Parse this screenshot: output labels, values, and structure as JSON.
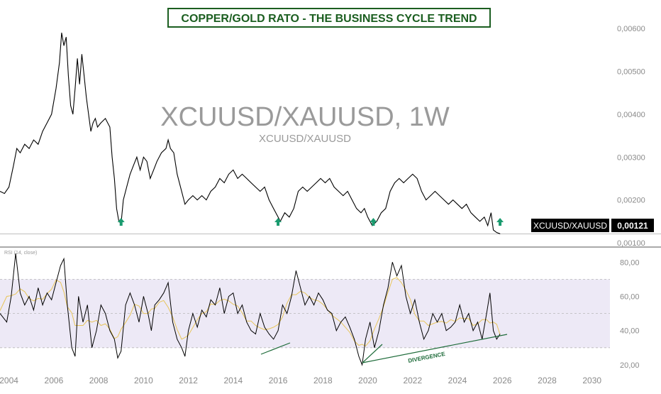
{
  "chart_data": {
    "type": "line",
    "title": "COPPER/GOLD RATO - THE BUSINESS CYCLE TREND",
    "watermark": "XCUUSD/XAUUSD, 1W",
    "watermark_sub": "XCUUSD/XAUUSD",
    "price_label": {
      "symbol": "XCUUSD/XAUUSD",
      "value": "0,00121"
    },
    "colors": {
      "title_box": "#1b5e20",
      "arrow": "#1a9b6f",
      "trendline": "#1e6b3a",
      "rsi_band": "#ede9f6",
      "price_label_bg": "#000000",
      "line": "#000000",
      "rsi_ma": "#e8c55a"
    },
    "x_ticks": [
      "2004",
      "2006",
      "2008",
      "2010",
      "2012",
      "2014",
      "2016",
      "2018",
      "2020",
      "2022",
      "2024",
      "2026",
      "2028",
      "2030"
    ],
    "xlim": [
      2003.6,
      2030.8
    ],
    "price_panel": {
      "ylim": [
        0.00095,
        0.0065
      ],
      "y_ticks": [
        "0,00100",
        "0,00200",
        "0,00300",
        "0,00400",
        "0,00500",
        "0,00600"
      ],
      "series": [
        {
          "points": [
            [
              2003.6,
              0.0022
            ],
            [
              2003.8,
              0.00215
            ],
            [
              2004.0,
              0.0023
            ],
            [
              2004.2,
              0.0028
            ],
            [
              2004.35,
              0.0032
            ],
            [
              2004.5,
              0.0031
            ],
            [
              2004.7,
              0.0033
            ],
            [
              2004.9,
              0.0032
            ],
            [
              2005.1,
              0.0034
            ],
            [
              2005.3,
              0.0033
            ],
            [
              2005.5,
              0.0036
            ],
            [
              2005.7,
              0.0038
            ],
            [
              2005.9,
              0.004
            ],
            [
              2006.1,
              0.0046
            ],
            [
              2006.25,
              0.0052
            ],
            [
              2006.35,
              0.0059
            ],
            [
              2006.45,
              0.0056
            ],
            [
              2006.55,
              0.0058
            ],
            [
              2006.65,
              0.0049
            ],
            [
              2006.75,
              0.0042
            ],
            [
              2006.85,
              0.004
            ],
            [
              2006.95,
              0.0046
            ],
            [
              2007.05,
              0.0053
            ],
            [
              2007.15,
              0.0047
            ],
            [
              2007.25,
              0.0054
            ],
            [
              2007.35,
              0.0049
            ],
            [
              2007.45,
              0.0044
            ],
            [
              2007.55,
              0.004
            ],
            [
              2007.65,
              0.0036
            ],
            [
              2007.75,
              0.0038
            ],
            [
              2007.85,
              0.0039
            ],
            [
              2007.95,
              0.0037
            ],
            [
              2008.1,
              0.0038
            ],
            [
              2008.3,
              0.0039
            ],
            [
              2008.5,
              0.0037
            ],
            [
              2008.6,
              0.003
            ],
            [
              2008.7,
              0.0025
            ],
            [
              2008.8,
              0.0018
            ],
            [
              2008.9,
              0.0015
            ],
            [
              2009.0,
              0.00145
            ],
            [
              2009.1,
              0.002
            ],
            [
              2009.25,
              0.0023
            ],
            [
              2009.4,
              0.0026
            ],
            [
              2009.55,
              0.0028
            ],
            [
              2009.7,
              0.003
            ],
            [
              2009.85,
              0.0027
            ],
            [
              2010.0,
              0.003
            ],
            [
              2010.15,
              0.0029
            ],
            [
              2010.3,
              0.0025
            ],
            [
              2010.45,
              0.0027
            ],
            [
              2010.6,
              0.0029
            ],
            [
              2010.8,
              0.0031
            ],
            [
              2011.0,
              0.0032
            ],
            [
              2011.1,
              0.0034
            ],
            [
              2011.2,
              0.0032
            ],
            [
              2011.35,
              0.0031
            ],
            [
              2011.5,
              0.0026
            ],
            [
              2011.7,
              0.0022
            ],
            [
              2011.85,
              0.0019
            ],
            [
              2012.0,
              0.002
            ],
            [
              2012.2,
              0.0021
            ],
            [
              2012.4,
              0.002
            ],
            [
              2012.6,
              0.0021
            ],
            [
              2012.8,
              0.002
            ],
            [
              2013.0,
              0.0022
            ],
            [
              2013.2,
              0.0023
            ],
            [
              2013.4,
              0.0025
            ],
            [
              2013.6,
              0.0024
            ],
            [
              2013.8,
              0.0026
            ],
            [
              2014.0,
              0.0027
            ],
            [
              2014.2,
              0.0025
            ],
            [
              2014.4,
              0.0026
            ],
            [
              2014.6,
              0.0025
            ],
            [
              2014.8,
              0.0024
            ],
            [
              2015.0,
              0.0023
            ],
            [
              2015.2,
              0.0022
            ],
            [
              2015.4,
              0.0023
            ],
            [
              2015.6,
              0.002
            ],
            [
              2015.8,
              0.0018
            ],
            [
              2016.0,
              0.0016
            ],
            [
              2016.1,
              0.0015
            ],
            [
              2016.3,
              0.0017
            ],
            [
              2016.5,
              0.0016
            ],
            [
              2016.7,
              0.0018
            ],
            [
              2016.9,
              0.0022
            ],
            [
              2017.1,
              0.0023
            ],
            [
              2017.3,
              0.0022
            ],
            [
              2017.5,
              0.0023
            ],
            [
              2017.7,
              0.0024
            ],
            [
              2017.9,
              0.0025
            ],
            [
              2018.1,
              0.0024
            ],
            [
              2018.3,
              0.0025
            ],
            [
              2018.5,
              0.0023
            ],
            [
              2018.7,
              0.0022
            ],
            [
              2018.9,
              0.0021
            ],
            [
              2019.1,
              0.0022
            ],
            [
              2019.3,
              0.002
            ],
            [
              2019.5,
              0.0018
            ],
            [
              2019.7,
              0.0017
            ],
            [
              2019.85,
              0.0018
            ],
            [
              2020.0,
              0.0016
            ],
            [
              2020.2,
              0.0014
            ],
            [
              2020.4,
              0.0015
            ],
            [
              2020.6,
              0.0017
            ],
            [
              2020.8,
              0.0018
            ],
            [
              2021.0,
              0.0022
            ],
            [
              2021.2,
              0.0024
            ],
            [
              2021.4,
              0.0025
            ],
            [
              2021.6,
              0.0024
            ],
            [
              2021.8,
              0.0025
            ],
            [
              2022.0,
              0.0026
            ],
            [
              2022.2,
              0.0025
            ],
            [
              2022.4,
              0.0022
            ],
            [
              2022.6,
              0.002
            ],
            [
              2022.8,
              0.0021
            ],
            [
              2023.0,
              0.0022
            ],
            [
              2023.2,
              0.0021
            ],
            [
              2023.4,
              0.002
            ],
            [
              2023.6,
              0.0019
            ],
            [
              2023.8,
              0.002
            ],
            [
              2024.0,
              0.0019
            ],
            [
              2024.2,
              0.0018
            ],
            [
              2024.4,
              0.0019
            ],
            [
              2024.6,
              0.0017
            ],
            [
              2024.8,
              0.0016
            ],
            [
              2025.0,
              0.0015
            ],
            [
              2025.2,
              0.0016
            ],
            [
              2025.35,
              0.0014
            ],
            [
              2025.5,
              0.0017
            ],
            [
              2025.6,
              0.0013
            ],
            [
              2025.75,
              0.00124
            ],
            [
              2025.9,
              0.00121
            ]
          ]
        }
      ],
      "annotations": {
        "arrows_x": [
          2009.0,
          2016.0,
          2020.25,
          2025.9
        ]
      }
    },
    "rsi_panel": {
      "label": "RSI (14, close)",
      "ylim": [
        15,
        88
      ],
      "y_ticks": [
        "20,00",
        "40,00",
        "60,00",
        "80,00"
      ],
      "band": [
        30,
        70
      ],
      "midline": 50,
      "series": [
        {
          "points": [
            [
              2003.6,
              50
            ],
            [
              2003.9,
              45
            ],
            [
              2004.1,
              60
            ],
            [
              2004.3,
              85
            ],
            [
              2004.5,
              62
            ],
            [
              2004.7,
              55
            ],
            [
              2004.9,
              60
            ],
            [
              2005.1,
              52
            ],
            [
              2005.3,
              65
            ],
            [
              2005.5,
              55
            ],
            [
              2005.7,
              62
            ],
            [
              2005.9,
              58
            ],
            [
              2006.1,
              68
            ],
            [
              2006.3,
              78
            ],
            [
              2006.45,
              82
            ],
            [
              2006.6,
              55
            ],
            [
              2006.8,
              30
            ],
            [
              2006.95,
              25
            ],
            [
              2007.1,
              60
            ],
            [
              2007.3,
              45
            ],
            [
              2007.5,
              55
            ],
            [
              2007.7,
              30
            ],
            [
              2007.9,
              40
            ],
            [
              2008.1,
              55
            ],
            [
              2008.3,
              50
            ],
            [
              2008.5,
              40
            ],
            [
              2008.7,
              35
            ],
            [
              2008.85,
              24
            ],
            [
              2009.0,
              28
            ],
            [
              2009.2,
              55
            ],
            [
              2009.4,
              62
            ],
            [
              2009.6,
              55
            ],
            [
              2009.8,
              45
            ],
            [
              2010.0,
              60
            ],
            [
              2010.2,
              50
            ],
            [
              2010.35,
              40
            ],
            [
              2010.5,
              55
            ],
            [
              2010.7,
              58
            ],
            [
              2010.9,
              62
            ],
            [
              2011.1,
              68
            ],
            [
              2011.3,
              45
            ],
            [
              2011.5,
              35
            ],
            [
              2011.7,
              30
            ],
            [
              2011.85,
              25
            ],
            [
              2012.0,
              40
            ],
            [
              2012.2,
              50
            ],
            [
              2012.4,
              42
            ],
            [
              2012.6,
              52
            ],
            [
              2012.8,
              48
            ],
            [
              2013.0,
              58
            ],
            [
              2013.2,
              55
            ],
            [
              2013.4,
              65
            ],
            [
              2013.6,
              50
            ],
            [
              2013.8,
              60
            ],
            [
              2014.0,
              62
            ],
            [
              2014.2,
              50
            ],
            [
              2014.4,
              55
            ],
            [
              2014.6,
              45
            ],
            [
              2014.8,
              40
            ],
            [
              2015.0,
              38
            ],
            [
              2015.2,
              50
            ],
            [
              2015.4,
              42
            ],
            [
              2015.6,
              38
            ],
            [
              2015.8,
              35
            ],
            [
              2016.0,
              40
            ],
            [
              2016.2,
              55
            ],
            [
              2016.4,
              50
            ],
            [
              2016.6,
              60
            ],
            [
              2016.8,
              75
            ],
            [
              2017.0,
              65
            ],
            [
              2017.2,
              55
            ],
            [
              2017.4,
              60
            ],
            [
              2017.6,
              55
            ],
            [
              2017.8,
              62
            ],
            [
              2018.0,
              58
            ],
            [
              2018.2,
              52
            ],
            [
              2018.4,
              50
            ],
            [
              2018.6,
              40
            ],
            [
              2018.8,
              45
            ],
            [
              2019.0,
              48
            ],
            [
              2019.2,
              42
            ],
            [
              2019.4,
              35
            ],
            [
              2019.6,
              25
            ],
            [
              2019.75,
              20
            ],
            [
              2019.9,
              35
            ],
            [
              2020.1,
              45
            ],
            [
              2020.3,
              30
            ],
            [
              2020.5,
              40
            ],
            [
              2020.7,
              55
            ],
            [
              2020.9,
              65
            ],
            [
              2021.1,
              80
            ],
            [
              2021.3,
              72
            ],
            [
              2021.5,
              78
            ],
            [
              2021.7,
              60
            ],
            [
              2021.9,
              50
            ],
            [
              2022.1,
              58
            ],
            [
              2022.3,
              45
            ],
            [
              2022.5,
              35
            ],
            [
              2022.7,
              40
            ],
            [
              2022.9,
              50
            ],
            [
              2023.1,
              45
            ],
            [
              2023.3,
              50
            ],
            [
              2023.5,
              40
            ],
            [
              2023.7,
              42
            ],
            [
              2023.9,
              45
            ],
            [
              2024.1,
              55
            ],
            [
              2024.3,
              45
            ],
            [
              2024.5,
              50
            ],
            [
              2024.7,
              40
            ],
            [
              2024.9,
              45
            ],
            [
              2025.1,
              35
            ],
            [
              2025.3,
              50
            ],
            [
              2025.45,
              62
            ],
            [
              2025.6,
              40
            ],
            [
              2025.75,
              35
            ],
            [
              2025.9,
              38
            ]
          ]
        }
      ],
      "annotations": {
        "divergence_label": "DIVERGENCE"
      }
    }
  }
}
